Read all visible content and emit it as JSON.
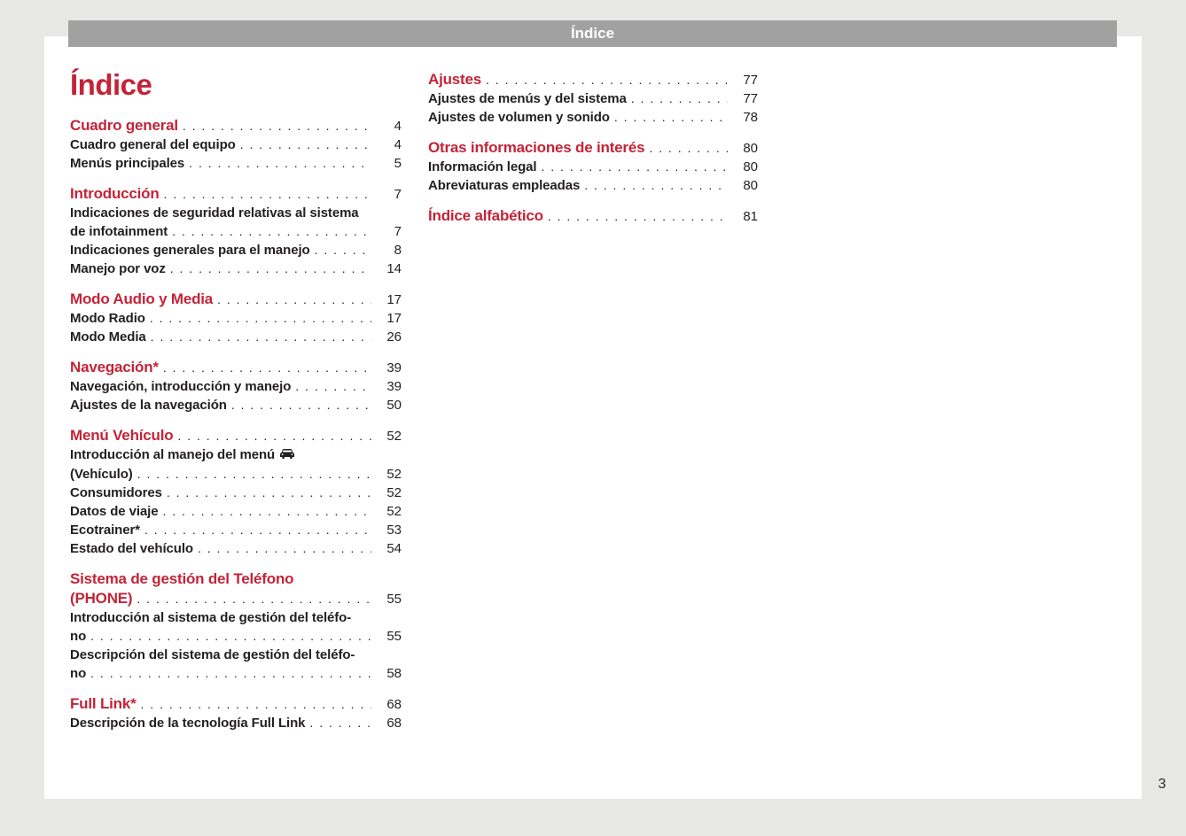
{
  "header": {
    "title": "Índice"
  },
  "title": "Índice",
  "page_number": "3",
  "colors": {
    "accent": "#c32438",
    "header_bar": "#a1a1a1",
    "page_background": "#ffffff",
    "canvas_background": "#e8e8e7",
    "text": "#231f20"
  },
  "columns": [
    {
      "name": "left",
      "sections": [
        {
          "items": [
            {
              "type": "heading",
              "lines": [
                "Cuadro general"
              ],
              "page": "4"
            },
            {
              "type": "entry",
              "lines": [
                "Cuadro general del equipo"
              ],
              "page": "4"
            },
            {
              "type": "entry",
              "lines": [
                "Menús principales"
              ],
              "page": "5"
            }
          ]
        },
        {
          "items": [
            {
              "type": "heading",
              "lines": [
                "Introducción"
              ],
              "page": "7"
            },
            {
              "type": "entry",
              "lines": [
                "Indicaciones de seguridad relativas al sistema",
                "de infotainment"
              ],
              "page": "7"
            },
            {
              "type": "entry",
              "lines": [
                "Indicaciones generales para el manejo"
              ],
              "page": "8"
            },
            {
              "type": "entry",
              "lines": [
                "Manejo por voz"
              ],
              "page": "14"
            }
          ]
        },
        {
          "items": [
            {
              "type": "heading",
              "lines": [
                "Modo Audio y Media"
              ],
              "page": "17"
            },
            {
              "type": "entry",
              "lines": [
                "Modo Radio"
              ],
              "page": "17"
            },
            {
              "type": "entry",
              "lines": [
                "Modo Media"
              ],
              "page": "26"
            }
          ]
        },
        {
          "items": [
            {
              "type": "heading",
              "lines": [
                "Navegación*"
              ],
              "page": "39"
            },
            {
              "type": "entry",
              "lines": [
                "Navegación, introducción y manejo"
              ],
              "page": "39"
            },
            {
              "type": "entry",
              "lines": [
                "Ajustes de la navegación"
              ],
              "page": "50"
            }
          ]
        },
        {
          "items": [
            {
              "type": "heading",
              "lines": [
                "Menú Vehículo"
              ],
              "page": "52"
            },
            {
              "type": "entry",
              "lines": [
                "Introducción al manejo del menú",
                "(Vehículo)"
              ],
              "page": "52",
              "icon": "car-icon",
              "icon_after_line": 0
            },
            {
              "type": "entry",
              "lines": [
                "Consumidores"
              ],
              "page": "52"
            },
            {
              "type": "entry",
              "lines": [
                "Datos de viaje"
              ],
              "page": "52"
            },
            {
              "type": "entry",
              "lines": [
                "Ecotrainer*"
              ],
              "page": "53"
            },
            {
              "type": "entry",
              "lines": [
                "Estado del vehículo"
              ],
              "page": "54"
            }
          ]
        },
        {
          "items": [
            {
              "type": "heading",
              "lines": [
                "Sistema de gestión del Teléfono",
                "(PHONE)"
              ],
              "page": "55"
            },
            {
              "type": "entry",
              "lines": [
                "Introducción al sistema de gestión del teléfo-",
                "no"
              ],
              "page": "55"
            },
            {
              "type": "entry",
              "lines": [
                "Descripción del sistema de gestión del teléfo-",
                "no"
              ],
              "page": "58"
            }
          ]
        },
        {
          "items": [
            {
              "type": "heading",
              "lines": [
                "Full Link*"
              ],
              "page": "68"
            },
            {
              "type": "entry",
              "lines": [
                "Descripción de la tecnología Full Link"
              ],
              "page": "68"
            }
          ]
        }
      ]
    },
    {
      "name": "right",
      "sections": [
        {
          "items": [
            {
              "type": "heading",
              "lines": [
                "Ajustes"
              ],
              "page": "77"
            },
            {
              "type": "entry",
              "lines": [
                "Ajustes de menús y del sistema"
              ],
              "page": "77"
            },
            {
              "type": "entry",
              "lines": [
                "Ajustes de volumen y sonido"
              ],
              "page": "78"
            }
          ]
        },
        {
          "items": [
            {
              "type": "heading",
              "lines": [
                "Otras informaciones de interés"
              ],
              "page": "80"
            },
            {
              "type": "entry",
              "lines": [
                "Información legal"
              ],
              "page": "80"
            },
            {
              "type": "entry",
              "lines": [
                "Abreviaturas empleadas"
              ],
              "page": "80"
            }
          ]
        },
        {
          "items": [
            {
              "type": "heading",
              "lines": [
                "Índice alfabético"
              ],
              "page": "81"
            }
          ]
        }
      ]
    }
  ]
}
